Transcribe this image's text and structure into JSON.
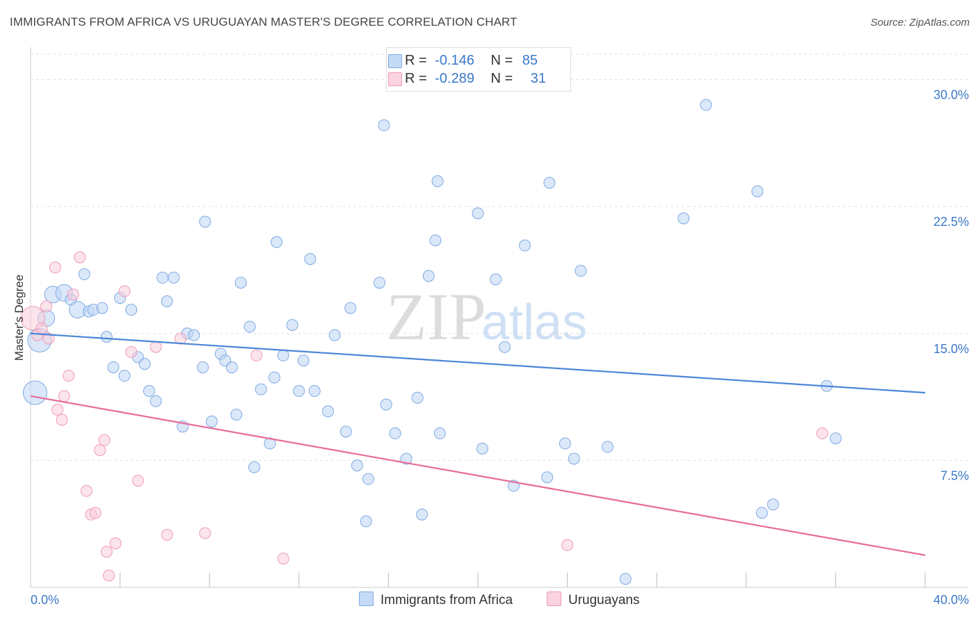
{
  "header": {
    "title": "IMMIGRANTS FROM AFRICA VS URUGUAYAN MASTER'S DEGREE CORRELATION CHART",
    "source": "Source: ZipAtlas.com"
  },
  "watermark": {
    "zip": "ZIP",
    "atlas": "atlas"
  },
  "legend": {
    "rows": [
      {
        "r_label": "R =",
        "r_value": "-0.146",
        "n_label": "N =",
        "n_value": "85",
        "color": "#a9c9f2"
      },
      {
        "r_label": "R =",
        "r_value": "-0.289",
        "n_label": "N =",
        "n_value": "31",
        "color": "#f6bccd"
      }
    ]
  },
  "bottom_legend": {
    "africa": "Immigrants from Africa",
    "uruguayans": "Uruguayans"
  },
  "chart_data": {
    "type": "scatter",
    "title": "IMMIGRANTS FROM AFRICA VS URUGUAYAN MASTER'S DEGREE CORRELATION CHART",
    "xlabel": "",
    "ylabel": "Master's Degree",
    "xlim": [
      0,
      40
    ],
    "ylim": [
      0,
      31.5
    ],
    "x_tick_labels": [
      "0.0%",
      "40.0%"
    ],
    "y_ticks": [
      7.5,
      15.0,
      22.5,
      30.0
    ],
    "y_tick_labels": [
      "7.5%",
      "15.0%",
      "22.5%",
      "30.0%"
    ],
    "colors": {
      "africa": "#4a86d8",
      "uruguayans": "#e86b98",
      "axis": "#3a78c9"
    },
    "series": [
      {
        "name": "Immigrants from Africa",
        "R": -0.146,
        "N": 85,
        "trend": {
          "x": [
            0,
            40
          ],
          "y": [
            15.0,
            11.5
          ]
        },
        "points": [
          [
            0.2,
            11.5,
            3
          ],
          [
            0.4,
            14.6,
            3
          ],
          [
            0.7,
            15.9,
            2
          ],
          [
            1.0,
            17.3,
            2
          ],
          [
            1.5,
            17.4,
            2
          ],
          [
            1.8,
            17.0,
            1
          ],
          [
            2.1,
            16.4,
            2
          ],
          [
            2.4,
            18.5,
            1
          ],
          [
            2.6,
            16.3,
            1
          ],
          [
            2.8,
            16.4,
            1
          ],
          [
            3.2,
            16.5,
            1
          ],
          [
            3.4,
            14.8,
            1
          ],
          [
            3.7,
            13.0,
            1
          ],
          [
            4.0,
            17.1,
            1
          ],
          [
            4.2,
            12.5,
            1
          ],
          [
            4.5,
            16.4,
            1
          ],
          [
            4.8,
            13.6,
            1
          ],
          [
            5.1,
            13.2,
            1
          ],
          [
            5.3,
            11.6,
            1
          ],
          [
            5.6,
            11.0,
            1
          ],
          [
            5.9,
            18.3,
            1
          ],
          [
            6.1,
            16.9,
            1
          ],
          [
            6.4,
            18.3,
            1
          ],
          [
            6.8,
            9.5,
            1
          ],
          [
            7.0,
            15.0,
            1
          ],
          [
            7.3,
            14.9,
            1
          ],
          [
            7.7,
            13.0,
            1
          ],
          [
            7.8,
            21.6,
            1
          ],
          [
            8.1,
            9.8,
            1
          ],
          [
            8.5,
            13.8,
            1
          ],
          [
            8.7,
            13.4,
            1
          ],
          [
            9.0,
            13.0,
            1
          ],
          [
            9.2,
            10.2,
            1
          ],
          [
            9.4,
            18.0,
            1
          ],
          [
            9.8,
            15.4,
            1
          ],
          [
            10.0,
            7.1,
            1
          ],
          [
            10.3,
            11.7,
            1
          ],
          [
            10.7,
            8.5,
            1
          ],
          [
            10.9,
            12.4,
            1
          ],
          [
            11.0,
            20.4,
            1
          ],
          [
            11.3,
            13.7,
            1
          ],
          [
            11.7,
            15.5,
            1
          ],
          [
            12.0,
            11.6,
            1
          ],
          [
            12.2,
            13.4,
            1
          ],
          [
            12.5,
            19.4,
            1
          ],
          [
            12.7,
            11.6,
            1
          ],
          [
            13.3,
            10.4,
            1
          ],
          [
            13.6,
            14.9,
            1
          ],
          [
            14.1,
            9.2,
            1
          ],
          [
            14.3,
            16.5,
            1
          ],
          [
            14.6,
            7.2,
            1
          ],
          [
            15.0,
            3.9,
            1
          ],
          [
            15.1,
            6.4,
            1
          ],
          [
            15.6,
            18.0,
            1
          ],
          [
            15.8,
            27.3,
            1
          ],
          [
            15.9,
            10.8,
            1
          ],
          [
            16.3,
            9.1,
            1
          ],
          [
            16.8,
            7.6,
            1
          ],
          [
            17.3,
            11.2,
            1
          ],
          [
            17.5,
            4.3,
            1
          ],
          [
            17.8,
            18.4,
            1
          ],
          [
            18.1,
            20.5,
            1
          ],
          [
            18.2,
            24.0,
            1
          ],
          [
            18.3,
            9.1,
            1
          ],
          [
            20.0,
            22.1,
            1
          ],
          [
            20.2,
            8.2,
            1
          ],
          [
            20.8,
            18.2,
            1
          ],
          [
            21.2,
            14.2,
            1
          ],
          [
            21.6,
            6.0,
            1
          ],
          [
            22.1,
            20.2,
            1
          ],
          [
            23.1,
            6.5,
            1
          ],
          [
            23.2,
            23.9,
            1
          ],
          [
            23.9,
            8.5,
            1
          ],
          [
            24.3,
            7.6,
            1
          ],
          [
            24.6,
            18.7,
            1
          ],
          [
            25.8,
            8.3,
            1
          ],
          [
            26.6,
            0.5,
            1
          ],
          [
            29.2,
            21.8,
            1
          ],
          [
            30.2,
            28.5,
            1
          ],
          [
            32.5,
            23.4,
            1
          ],
          [
            32.7,
            4.4,
            1
          ],
          [
            33.2,
            4.9,
            1
          ],
          [
            35.6,
            11.9,
            1
          ],
          [
            36.0,
            8.8,
            1
          ]
        ]
      },
      {
        "name": "Uruguayans",
        "R": -0.289,
        "N": 31,
        "trend": {
          "x": [
            0,
            40
          ],
          "y": [
            11.3,
            1.9
          ]
        },
        "points": [
          [
            0.1,
            15.9,
            3
          ],
          [
            0.3,
            14.9,
            1
          ],
          [
            0.5,
            15.3,
            1
          ],
          [
            0.7,
            16.6,
            1
          ],
          [
            0.8,
            14.7,
            1
          ],
          [
            1.1,
            18.9,
            1
          ],
          [
            1.2,
            10.5,
            1
          ],
          [
            1.4,
            9.9,
            1
          ],
          [
            1.5,
            11.3,
            1
          ],
          [
            1.7,
            12.5,
            1
          ],
          [
            1.9,
            17.3,
            1
          ],
          [
            2.2,
            19.5,
            1
          ],
          [
            2.5,
            5.7,
            1
          ],
          [
            2.7,
            4.3,
            1
          ],
          [
            2.9,
            4.4,
            1
          ],
          [
            3.1,
            8.1,
            1
          ],
          [
            3.3,
            8.7,
            1
          ],
          [
            3.4,
            2.1,
            1
          ],
          [
            3.5,
            0.7,
            1
          ],
          [
            3.8,
            2.6,
            1
          ],
          [
            4.2,
            17.5,
            1
          ],
          [
            4.5,
            13.9,
            1
          ],
          [
            4.8,
            6.3,
            1
          ],
          [
            5.6,
            14.2,
            1
          ],
          [
            6.1,
            3.1,
            1
          ],
          [
            6.7,
            14.7,
            1
          ],
          [
            7.8,
            3.2,
            1
          ],
          [
            10.1,
            13.7,
            1
          ],
          [
            11.3,
            1.7,
            1
          ],
          [
            24.0,
            2.5,
            1
          ],
          [
            35.4,
            9.1,
            1
          ]
        ]
      }
    ]
  }
}
